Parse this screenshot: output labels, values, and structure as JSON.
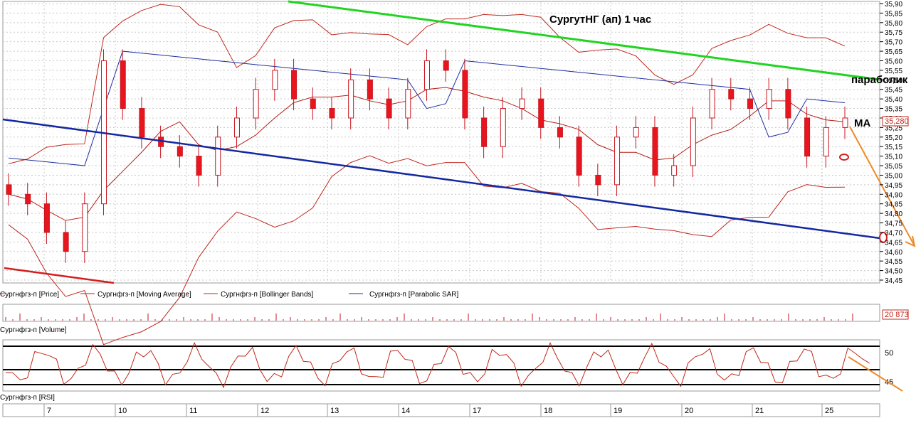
{
  "chart_title": "СургутНГ (ап)  1 час",
  "colors": {
    "candle_down": "#e8141e",
    "candle_line": "#c8141e",
    "ma": "#b41e14",
    "bollinger": "#c0281e",
    "sar": "#1e2ea0",
    "trend_top": "#22d422",
    "trend_bottom": "#1428a0",
    "trend_red": "#d41e1e",
    "arrow": "#ee8a2a",
    "grid": "#c8c8c8",
    "rsi_line": "#c02818"
  },
  "legend": [
    {
      "label": "Сургнфгз-п [Price]"
    },
    {
      "label": "Сургнфгз-п [Moving Average]"
    },
    {
      "label": "Сургнфгз-п [Bollinger Bands]"
    },
    {
      "label": "Сургнфгз-п [Parabolic SAR]"
    }
  ],
  "annotations": {
    "parabolic": "параболик",
    "ma": "MA"
  },
  "price_axis": {
    "ticks": [
      "35,90",
      "35,85",
      "35,80",
      "35,75",
      "35,70",
      "35,65",
      "35,60",
      "35,55",
      "35,50",
      "35,45",
      "35,40",
      "35,35",
      "35,30",
      "35,25",
      "35,20",
      "35,15",
      "35,10",
      "35,05",
      "35,00",
      "34,95",
      "34,90",
      "34,85",
      "34,80",
      "34,75",
      "34,70",
      "34,65",
      "34,60",
      "34,55",
      "34,50",
      "34,45"
    ],
    "current_price": "35,280"
  },
  "volume_panel": {
    "label": "Сургнфгз-п [Volume]",
    "current_value": "20 873"
  },
  "rsi_panel": {
    "label": "Сургнфгз-п [RSI]",
    "ticks": [
      "50",
      "45"
    ]
  },
  "x_axis": {
    "day_labels": [
      "7",
      "10",
      "11",
      "12",
      "13",
      "14",
      "17",
      "18",
      "19",
      "20",
      "21",
      "25"
    ]
  },
  "chart_data": {
    "type": "line",
    "x_unit": "hour bars, days 7–25",
    "y_unit": "price",
    "ylim": [
      34.45,
      35.9
    ],
    "series": [
      {
        "name": "Сургнфгз-п [Price]",
        "values": [
          34.9,
          34.85,
          34.7,
          34.6,
          34.85,
          35.6,
          35.35,
          35.2,
          35.15,
          35.1,
          35.0,
          35.2,
          35.3,
          35.45,
          35.55,
          35.4,
          35.35,
          35.3,
          35.5,
          35.4,
          35.3,
          35.45,
          35.6,
          35.55,
          35.3,
          35.15,
          35.35,
          35.4,
          35.25,
          35.2,
          35.0,
          34.95,
          35.2,
          35.25,
          35.0,
          35.05,
          35.3,
          35.45,
          35.4,
          35.35,
          35.45,
          35.3,
          35.1,
          35.25,
          35.3
        ]
      },
      {
        "name": "Сургнфгз-п [Moving Average]"
      },
      {
        "name": "Сургнфгз-п [Bollinger Bands]"
      },
      {
        "name": "Сургнфгз-п [Parabolic SAR]"
      }
    ],
    "grid": true
  }
}
